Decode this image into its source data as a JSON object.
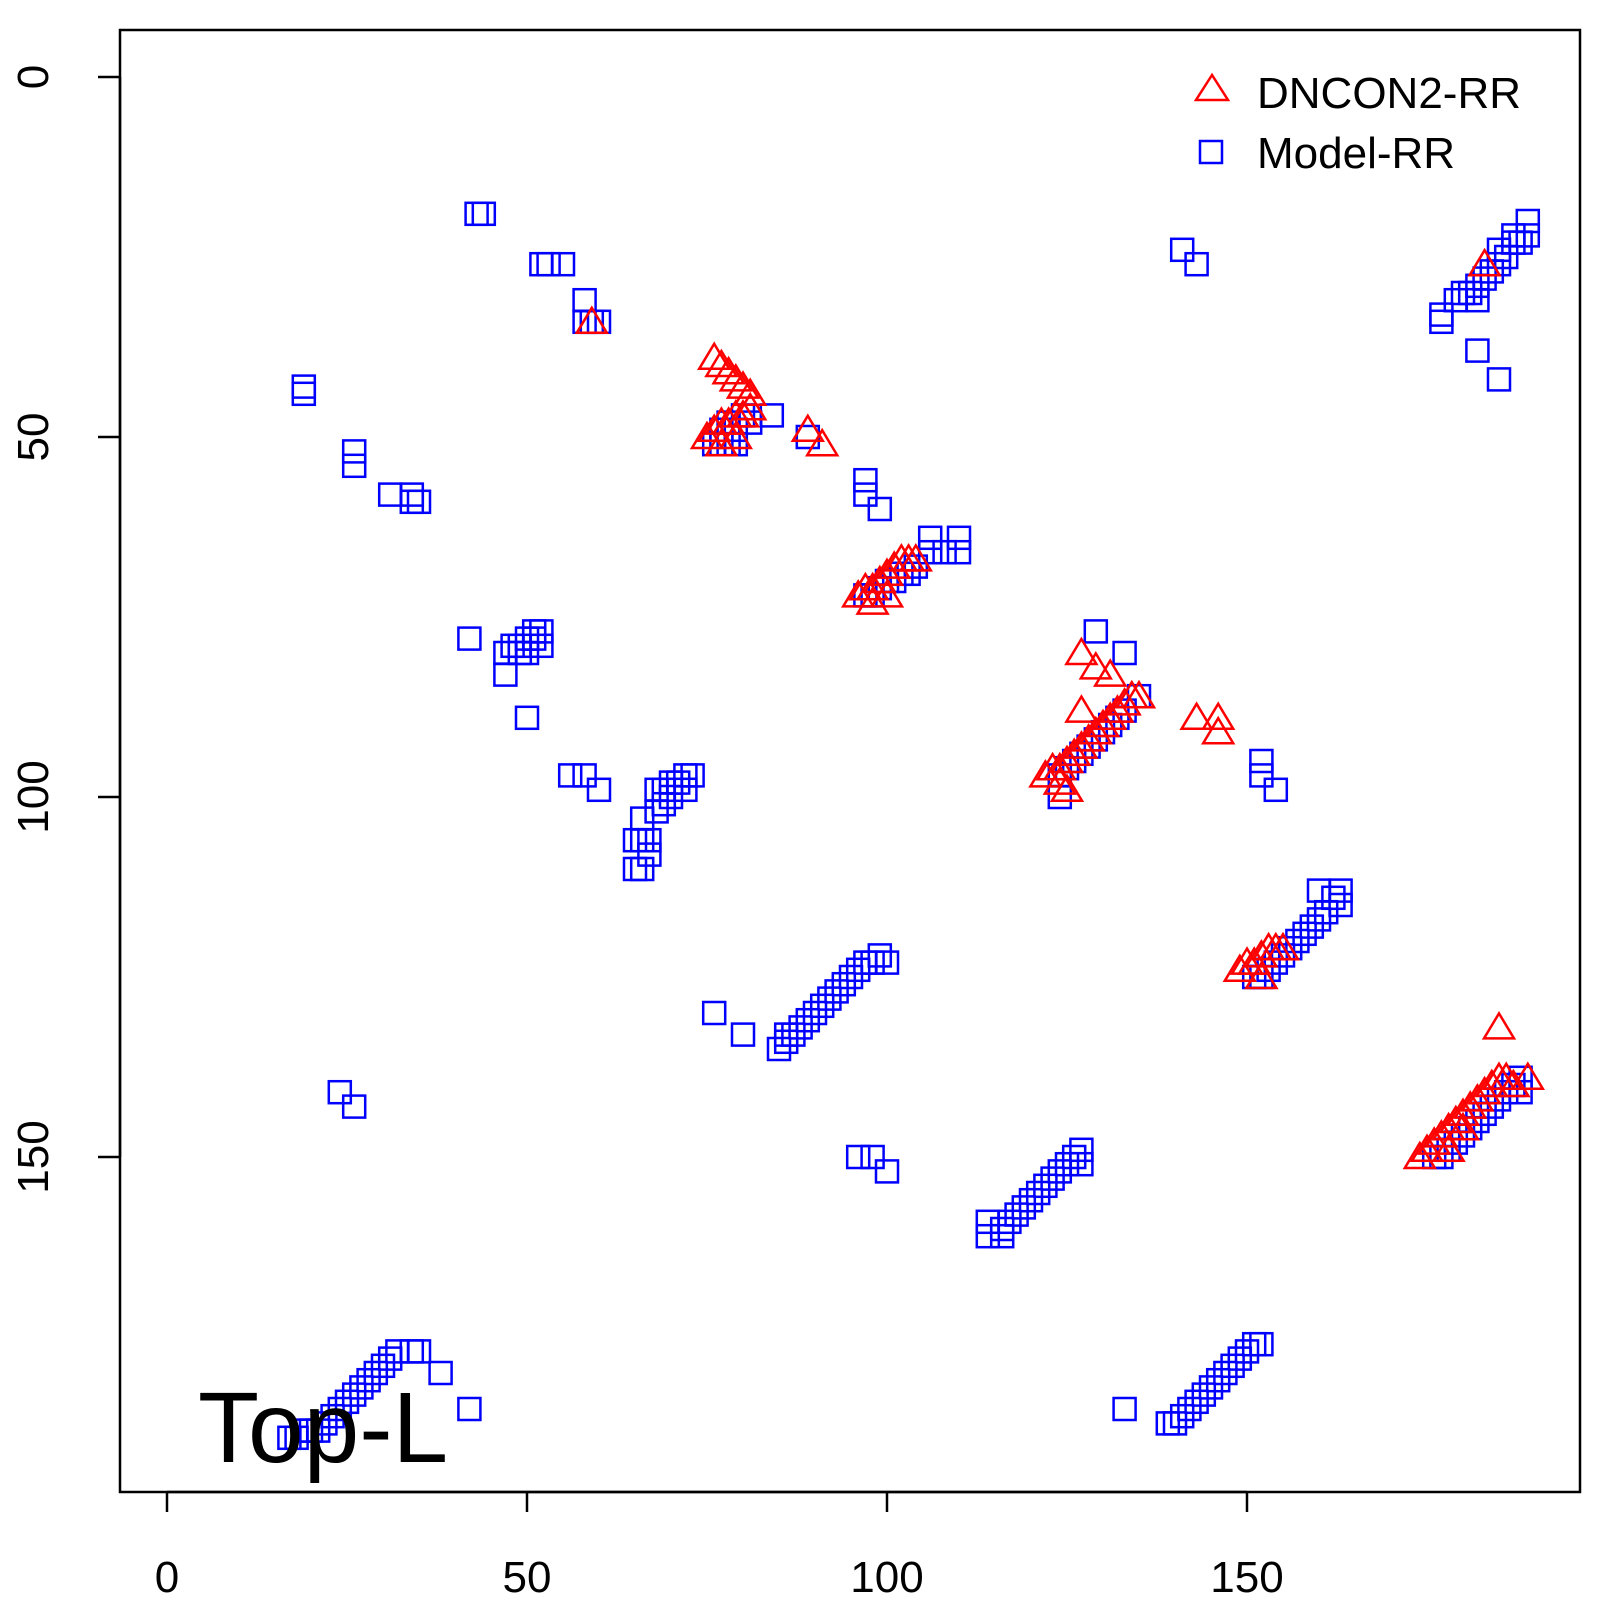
{
  "chart_data": {
    "type": "scatter",
    "panel_label": "Top-L",
    "x_ticks": [
      "0",
      "50",
      "100",
      "150"
    ],
    "y_ticks": [
      "0",
      "50",
      "100",
      "150"
    ],
    "xlim": [
      -6.5,
      196
    ],
    "ylim": [
      -6.5,
      196
    ],
    "y_axis_reversed": true,
    "grid": false,
    "legend_position": "top-right",
    "legend": [
      {
        "label": "DNCON2-RR",
        "marker": "triangle",
        "color": "#ff0000"
      },
      {
        "label": "Model-RR",
        "marker": "square",
        "color": "#0000ff"
      }
    ],
    "series": [
      {
        "name": "Model-RR",
        "marker": "square",
        "color": "#0000ff",
        "points": [
          [
            43,
            19
          ],
          [
            44,
            19
          ],
          [
            52,
            26
          ],
          [
            53,
            26
          ],
          [
            55,
            26
          ],
          [
            58,
            31
          ],
          [
            58,
            34
          ],
          [
            59,
            34
          ],
          [
            60,
            34
          ],
          [
            19,
            43
          ],
          [
            19,
            44
          ],
          [
            26,
            52
          ],
          [
            26,
            54
          ],
          [
            31,
            58
          ],
          [
            34,
            58
          ],
          [
            34,
            59
          ],
          [
            35,
            59
          ],
          [
            76,
            51
          ],
          [
            77,
            51
          ],
          [
            78,
            51
          ],
          [
            79,
            51
          ],
          [
            77,
            49
          ],
          [
            78,
            48
          ],
          [
            79,
            49
          ],
          [
            80,
            47
          ],
          [
            81,
            48
          ],
          [
            84,
            47
          ],
          [
            89,
            50
          ],
          [
            97,
            56
          ],
          [
            97,
            58
          ],
          [
            99,
            60
          ],
          [
            106,
            64
          ],
          [
            106,
            66
          ],
          [
            108,
            66
          ],
          [
            110,
            64
          ],
          [
            110,
            66
          ],
          [
            97,
            72
          ],
          [
            98,
            72
          ],
          [
            99,
            71
          ],
          [
            100,
            70
          ],
          [
            101,
            70
          ],
          [
            102,
            69
          ],
          [
            103,
            69
          ],
          [
            104,
            68
          ],
          [
            42,
            78
          ],
          [
            47,
            80
          ],
          [
            47,
            83
          ],
          [
            48,
            79
          ],
          [
            49,
            79
          ],
          [
            49,
            80
          ],
          [
            50,
            78
          ],
          [
            50,
            80
          ],
          [
            51,
            77
          ],
          [
            51,
            78
          ],
          [
            52,
            77
          ],
          [
            52,
            79
          ],
          [
            50,
            89
          ],
          [
            56,
            97
          ],
          [
            58,
            97
          ],
          [
            60,
            99
          ],
          [
            65,
            106
          ],
          [
            65,
            110
          ],
          [
            66,
            103
          ],
          [
            66,
            106
          ],
          [
            66,
            110
          ],
          [
            67,
            106
          ],
          [
            67,
            108
          ],
          [
            68,
            99
          ],
          [
            68,
            102
          ],
          [
            69,
            99
          ],
          [
            69,
            101
          ],
          [
            70,
            98
          ],
          [
            70,
            100
          ],
          [
            71,
            98
          ],
          [
            72,
            97
          ],
          [
            72,
            99
          ],
          [
            73,
            97
          ],
          [
            124,
            100
          ],
          [
            124,
            97
          ],
          [
            125,
            96
          ],
          [
            126,
            95
          ],
          [
            127,
            94
          ],
          [
            128,
            93
          ],
          [
            129,
            92
          ],
          [
            130,
            91
          ],
          [
            131,
            90
          ],
          [
            132,
            89
          ],
          [
            133,
            88
          ],
          [
            135,
            86
          ],
          [
            129,
            77
          ],
          [
            133,
            80
          ],
          [
            141,
            24
          ],
          [
            143,
            26
          ],
          [
            152,
            95
          ],
          [
            152,
            97
          ],
          [
            154,
            99
          ],
          [
            177,
            33
          ],
          [
            177,
            34
          ],
          [
            179,
            31
          ],
          [
            180,
            30
          ],
          [
            181,
            30
          ],
          [
            182,
            29
          ],
          [
            182,
            31
          ],
          [
            183,
            28
          ],
          [
            184,
            27
          ],
          [
            185,
            26
          ],
          [
            185,
            24
          ],
          [
            186,
            25
          ],
          [
            187,
            23
          ],
          [
            187,
            22
          ],
          [
            188,
            23
          ],
          [
            189,
            22
          ],
          [
            189,
            20
          ],
          [
            182,
            38
          ],
          [
            185,
            42
          ],
          [
            151,
            125
          ],
          [
            152,
            125
          ],
          [
            153,
            124
          ],
          [
            154,
            123
          ],
          [
            155,
            122
          ],
          [
            156,
            121
          ],
          [
            157,
            120
          ],
          [
            158,
            119
          ],
          [
            159,
            118
          ],
          [
            160,
            117
          ],
          [
            161,
            116
          ],
          [
            162,
            114
          ],
          [
            160,
            113
          ],
          [
            163,
            113
          ],
          [
            163,
            115
          ],
          [
            85,
            135
          ],
          [
            86,
            134
          ],
          [
            86,
            133
          ],
          [
            87,
            133
          ],
          [
            88,
            132
          ],
          [
            89,
            131
          ],
          [
            90,
            130
          ],
          [
            91,
            129
          ],
          [
            92,
            128
          ],
          [
            93,
            127
          ],
          [
            94,
            126
          ],
          [
            95,
            125
          ],
          [
            96,
            124
          ],
          [
            97,
            123
          ],
          [
            98,
            123
          ],
          [
            99,
            122
          ],
          [
            100,
            123
          ],
          [
            76,
            130
          ],
          [
            80,
            133
          ],
          [
            176,
            150
          ],
          [
            177,
            150
          ],
          [
            178,
            149
          ],
          [
            179,
            148
          ],
          [
            180,
            147
          ],
          [
            181,
            146
          ],
          [
            182,
            145
          ],
          [
            183,
            144
          ],
          [
            184,
            143
          ],
          [
            185,
            142
          ],
          [
            186,
            141
          ],
          [
            187,
            140
          ],
          [
            188,
            139
          ],
          [
            188,
            141
          ],
          [
            114,
            159
          ],
          [
            114,
            161
          ],
          [
            116,
            160
          ],
          [
            116,
            161
          ],
          [
            117,
            159
          ],
          [
            118,
            158
          ],
          [
            119,
            157
          ],
          [
            120,
            156
          ],
          [
            121,
            155
          ],
          [
            122,
            154
          ],
          [
            123,
            153
          ],
          [
            124,
            152
          ],
          [
            125,
            151
          ],
          [
            126,
            150
          ],
          [
            127,
            149
          ],
          [
            127,
            151
          ],
          [
            96,
            150
          ],
          [
            98,
            150
          ],
          [
            100,
            152
          ],
          [
            24,
            141
          ],
          [
            26,
            143
          ],
          [
            17,
            189
          ],
          [
            18,
            189
          ],
          [
            19,
            188
          ],
          [
            20,
            188
          ],
          [
            21,
            188
          ],
          [
            22,
            187
          ],
          [
            23,
            186
          ],
          [
            24,
            185
          ],
          [
            25,
            184
          ],
          [
            26,
            183
          ],
          [
            27,
            182
          ],
          [
            28,
            181
          ],
          [
            29,
            180
          ],
          [
            30,
            179
          ],
          [
            31,
            178
          ],
          [
            32,
            177
          ],
          [
            34,
            177
          ],
          [
            35,
            177
          ],
          [
            38,
            180
          ],
          [
            42,
            185
          ],
          [
            133,
            185
          ],
          [
            139,
            187
          ],
          [
            140,
            187
          ],
          [
            141,
            186
          ],
          [
            142,
            185
          ],
          [
            143,
            184
          ],
          [
            144,
            183
          ],
          [
            145,
            182
          ],
          [
            146,
            181
          ],
          [
            147,
            180
          ],
          [
            148,
            179
          ],
          [
            149,
            178
          ],
          [
            150,
            177
          ],
          [
            151,
            176
          ],
          [
            152,
            176
          ]
        ]
      },
      {
        "name": "DNCON2-RR",
        "marker": "triangle",
        "color": "#ff0000",
        "points": [
          [
            59,
            34
          ],
          [
            76,
            39
          ],
          [
            77,
            40
          ],
          [
            78,
            41
          ],
          [
            79,
            42
          ],
          [
            80,
            43
          ],
          [
            81,
            44
          ],
          [
            89,
            49
          ],
          [
            91,
            51
          ],
          [
            75,
            50
          ],
          [
            76,
            49
          ],
          [
            77,
            48
          ],
          [
            78,
            48
          ],
          [
            79,
            47
          ],
          [
            80,
            47
          ],
          [
            81,
            46
          ],
          [
            79,
            50
          ],
          [
            77,
            51
          ],
          [
            96,
            72
          ],
          [
            97,
            71
          ],
          [
            98,
            71
          ],
          [
            99,
            70
          ],
          [
            100,
            69
          ],
          [
            101,
            68
          ],
          [
            102,
            67
          ],
          [
            103,
            67
          ],
          [
            104,
            67
          ],
          [
            98,
            73
          ],
          [
            100,
            72
          ],
          [
            127,
            80
          ],
          [
            129,
            82
          ],
          [
            131,
            83
          ],
          [
            122,
            97
          ],
          [
            123,
            96
          ],
          [
            124,
            96
          ],
          [
            125,
            95
          ],
          [
            126,
            94
          ],
          [
            127,
            93
          ],
          [
            128,
            92
          ],
          [
            129,
            91
          ],
          [
            130,
            90
          ],
          [
            131,
            89
          ],
          [
            132,
            88
          ],
          [
            133,
            87
          ],
          [
            134,
            86
          ],
          [
            135,
            86
          ],
          [
            127,
            88
          ],
          [
            125,
            99
          ],
          [
            124,
            98
          ],
          [
            143,
            89
          ],
          [
            146,
            89
          ],
          [
            146,
            91
          ],
          [
            149,
            124
          ],
          [
            150,
            123
          ],
          [
            151,
            123
          ],
          [
            152,
            122
          ],
          [
            153,
            121
          ],
          [
            154,
            121
          ],
          [
            155,
            121
          ],
          [
            152,
            125
          ],
          [
            183,
            26
          ],
          [
            185,
            132
          ],
          [
            174,
            150
          ],
          [
            175,
            149
          ],
          [
            176,
            148
          ],
          [
            177,
            147
          ],
          [
            178,
            146
          ],
          [
            179,
            145
          ],
          [
            180,
            144
          ],
          [
            181,
            143
          ],
          [
            182,
            142
          ],
          [
            183,
            141
          ],
          [
            184,
            140
          ],
          [
            185,
            139
          ],
          [
            186,
            139
          ],
          [
            187,
            140
          ],
          [
            189,
            139
          ],
          [
            180,
            146
          ],
          [
            178,
            149
          ]
        ]
      }
    ]
  }
}
